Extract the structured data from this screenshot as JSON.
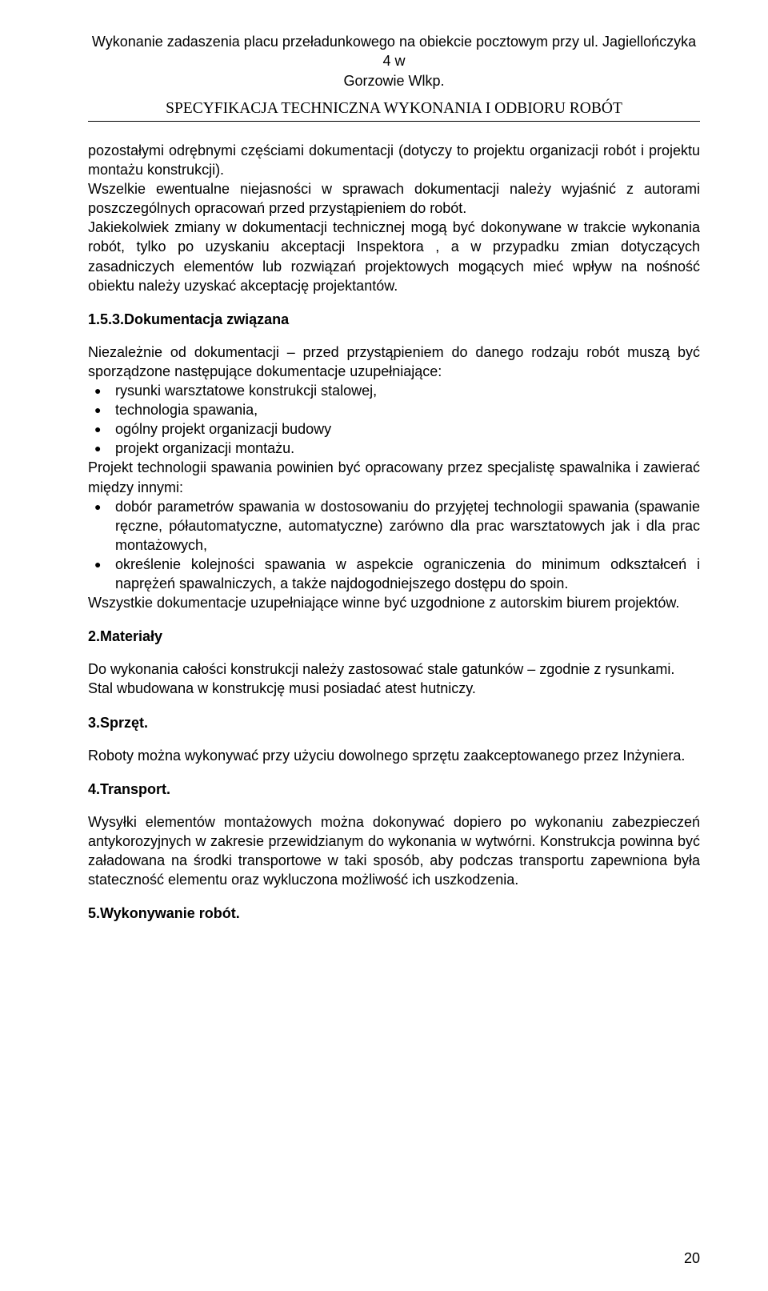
{
  "header": {
    "title_line1": "Wykonanie zadaszenia placu przeładunkowego na obiekcie pocztowym przy ul. Jagiellończyka 4 w",
    "title_line2": "Gorzowie Wlkp.",
    "subtitle": "SPECYFIKACJA TECHNICZNA WYKONANIA I ODBIORU ROBÓT"
  },
  "intro": {
    "p1": "pozostałymi odrębnymi częściami dokumentacji (dotyczy to projektu organizacji robót i projektu montażu konstrukcji).",
    "p2": "Wszelkie ewentualne niejasności w sprawach dokumentacji należy wyjaśnić z autorami poszczególnych opracowań przed przystąpieniem do robót.",
    "p3": "Jakiekolwiek zmiany w dokumentacji technicznej mogą być dokonywane w trakcie wykonania robót, tylko po uzyskaniu akceptacji Inspektora , a  w przypadku zmian dotyczących zasadniczych elementów lub rozwiązań projektowych mogących mieć wpływ na nośność obiektu należy uzyskać akceptację projektantów."
  },
  "s153": {
    "heading": "1.5.3.Dokumentacja związana",
    "lead": "Niezależnie od dokumentacji – przed przystąpieniem do danego rodzaju robót muszą być sporządzone następujące dokumentacje uzupełniające:",
    "bullets1": [
      "rysunki warsztatowe konstrukcji stalowej,",
      "technologia spawania,",
      "ogólny projekt organizacji budowy",
      "projekt organizacji montażu."
    ],
    "mid": "Projekt technologii spawania powinien być opracowany przez specjalistę spawalnika i zawierać między innymi:",
    "bullets2": [
      "dobór parametrów spawania w dostosowaniu do przyjętej technologii spawania (spawanie ręczne, półautomatyczne, automatyczne) zarówno dla prac warsztatowych jak i dla prac montażowych,",
      "określenie kolejności spawania w aspekcie ograniczenia do minimum odkształceń i naprężeń spawalniczych, a także najdogodniejszego dostępu do spoin."
    ],
    "tail": "Wszystkie dokumentacje uzupełniające winne być uzgodnione  z autorskim biurem projektów."
  },
  "s2": {
    "heading": "2.Materiały",
    "p1": "Do wykonania całości konstrukcji należy zastosować stale gatunków – zgodnie z rysunkami.",
    "p2": "Stal wbudowana w konstrukcję musi posiadać atest hutniczy."
  },
  "s3": {
    "heading": "3.Sprzęt.",
    "p1": "Roboty można wykonywać przy użyciu dowolnego sprzętu zaakceptowanego przez Inżyniera."
  },
  "s4": {
    "heading": "4.Transport.",
    "p1": "Wysyłki elementów montażowych można dokonywać dopiero po wykonaniu zabezpieczeń antykorozyjnych w zakresie przewidzianym do wykonania w wytwórni. Konstrukcja powinna być załadowana na środki transportowe w taki sposób, aby podczas transportu zapewniona była stateczność elementu oraz wykluczona możliwość ich uszkodzenia."
  },
  "s5": {
    "heading": "5.Wykonywanie robót."
  },
  "page_number": "20"
}
